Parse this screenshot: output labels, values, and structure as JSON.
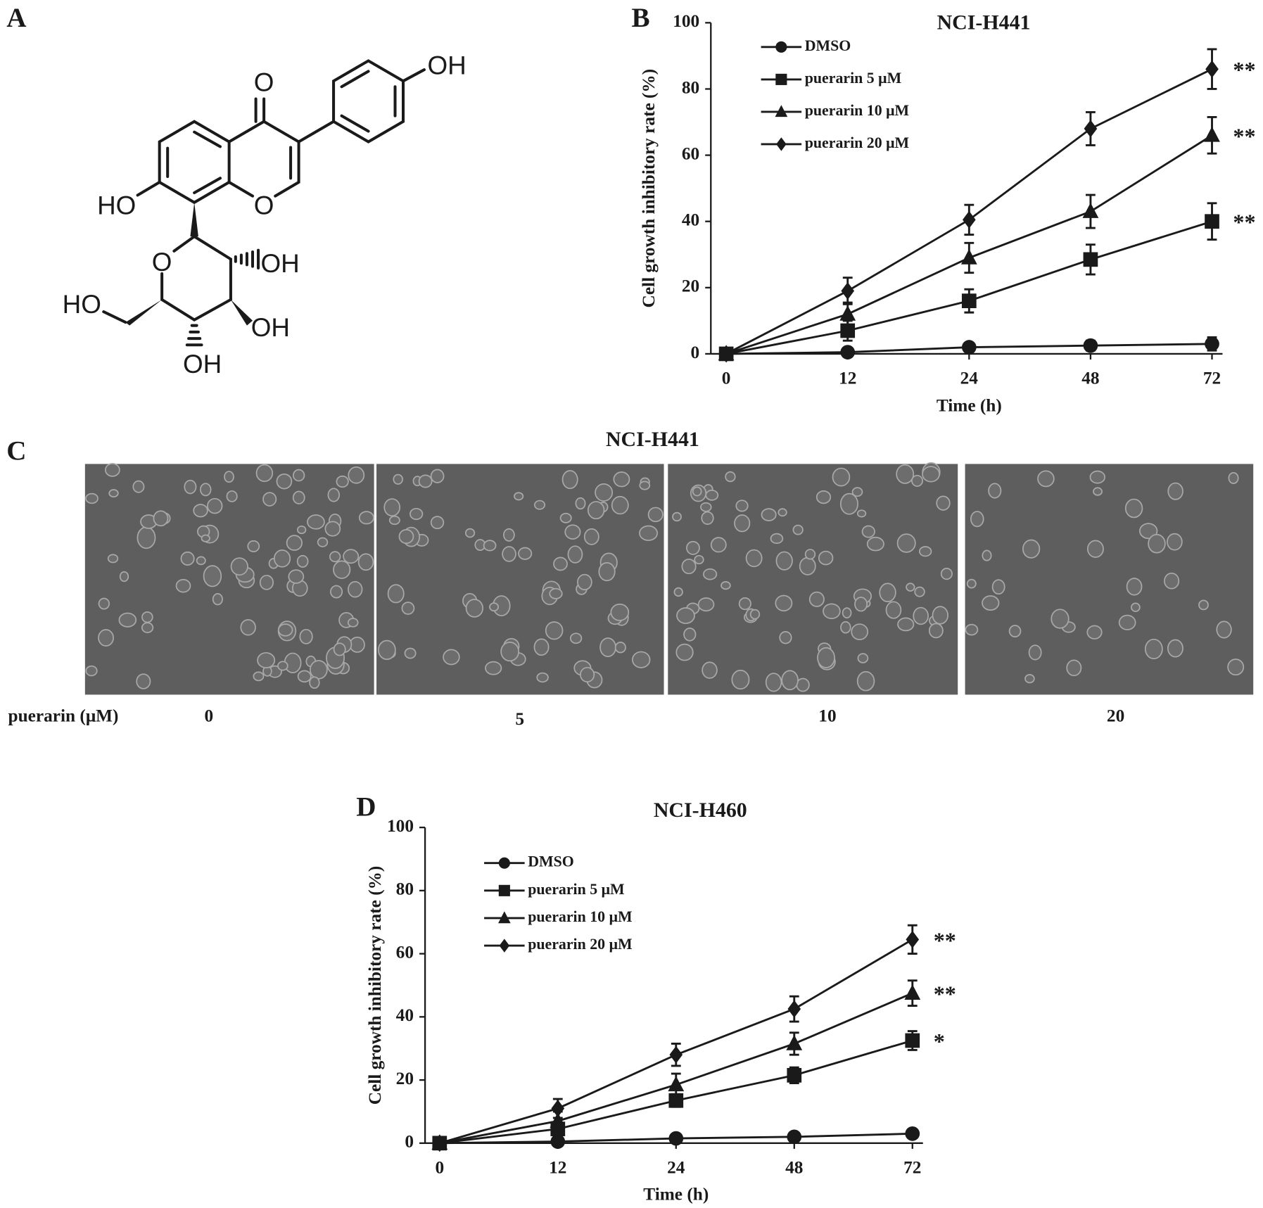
{
  "panels": [
    "A",
    "B",
    "C",
    "D"
  ],
  "structure": {
    "atoms": [
      "O",
      "OH",
      "HO",
      "O",
      "O",
      "OH",
      "HO",
      "OH",
      "OH"
    ]
  },
  "micrographs": {
    "title": "NCI-H441",
    "label": "puerarin (μM)",
    "doses": [
      "0",
      "5",
      "10",
      "20"
    ]
  },
  "chart_data": [
    {
      "type": "line",
      "title": "NCI-H441",
      "xlabel": "Time (h)",
      "ylabel": "Cell growth inhibitory  rate (%)",
      "categories": [
        "0",
        "12",
        "24",
        "48",
        "72"
      ],
      "ylim": [
        0,
        100
      ],
      "yticks": [
        0,
        20,
        40,
        60,
        80,
        100
      ],
      "series": [
        {
          "name": "DMSO",
          "color": "#1a1a1a",
          "marker": "circle",
          "values": [
            0,
            0.5,
            2,
            2.5,
            3
          ],
          "errors": [
            0,
            0.5,
            1,
            1.5,
            2
          ]
        },
        {
          "name": "puerarin 5 μM",
          "color": "#1a1a1a",
          "marker": "square",
          "values": [
            0,
            7,
            16,
            28.5,
            40
          ],
          "errors": [
            0,
            3,
            3.5,
            4.5,
            5.5
          ]
        },
        {
          "name": "puerarin 10 μM",
          "color": "#1a1a1a",
          "marker": "triangle",
          "values": [
            0,
            12,
            29,
            43,
            66
          ],
          "errors": [
            0,
            3.5,
            4.5,
            5,
            5.5
          ]
        },
        {
          "name": "puerarin 20 μM",
          "color": "#1a1a1a",
          "marker": "diamond",
          "values": [
            0,
            19,
            40.5,
            68,
            86
          ],
          "errors": [
            0,
            4,
            4.5,
            5,
            6
          ]
        }
      ],
      "annotations": [
        "**",
        "**",
        "**"
      ]
    },
    {
      "type": "line",
      "title": "NCI-H460",
      "xlabel": "Time (h)",
      "ylabel": "Cell growth inhibitory  rate (%)",
      "categories": [
        "0",
        "12",
        "24",
        "48",
        "72"
      ],
      "ylim": [
        0,
        100
      ],
      "yticks": [
        0,
        20,
        40,
        60,
        80,
        100
      ],
      "series": [
        {
          "name": "DMSO",
          "color": "#1a1a1a",
          "marker": "circle",
          "values": [
            0,
            0.5,
            1.5,
            2,
            3
          ],
          "errors": [
            0,
            0.5,
            0.5,
            0.5,
            0.5
          ]
        },
        {
          "name": "puerarin 5 μM",
          "color": "#1a1a1a",
          "marker": "square",
          "values": [
            0,
            4.5,
            13.5,
            21.5,
            32.5
          ],
          "errors": [
            0,
            2,
            2,
            2.5,
            3
          ]
        },
        {
          "name": "puerarin 10 μM",
          "color": "#1a1a1a",
          "marker": "triangle",
          "values": [
            0,
            7,
            18.5,
            31.5,
            47.5
          ],
          "errors": [
            0,
            3,
            3.5,
            3.5,
            4
          ]
        },
        {
          "name": "puerarin 20 μM",
          "color": "#1a1a1a",
          "marker": "diamond",
          "values": [
            0,
            11,
            28,
            42.5,
            64.5
          ],
          "errors": [
            0,
            3,
            3.5,
            4,
            4.5
          ]
        }
      ],
      "annotations": [
        "**",
        "**",
        "*"
      ]
    }
  ]
}
